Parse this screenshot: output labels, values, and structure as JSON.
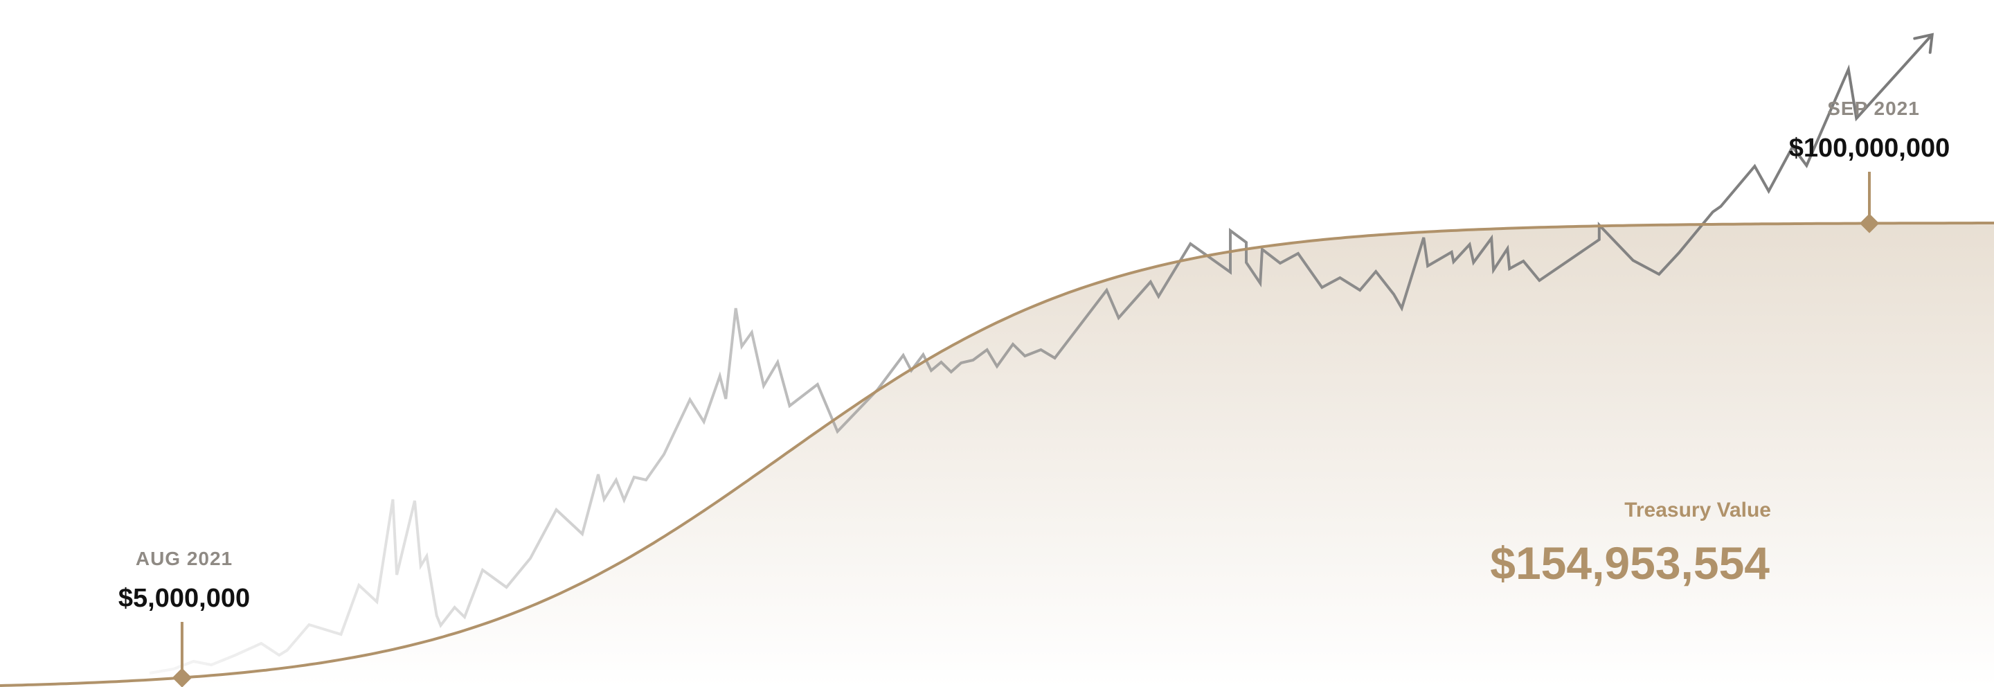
{
  "chart_data": {
    "type": "area",
    "title": "",
    "xlabel": "",
    "ylabel": "",
    "colors": {
      "curve": "#b0926a",
      "fill_top": "#e8dfd3",
      "fill_bottom": "#ffffff",
      "price_line": "#8a8a8a"
    },
    "annotations": [
      {
        "month": "AUG 2021",
        "amount": "$5,000,000",
        "x": 0.0913,
        "value": 5000000
      },
      {
        "month": "SEP 2021",
        "amount": "$100,000,000",
        "x": 0.9375,
        "value": 100000000
      }
    ],
    "treasury": {
      "label": "Treasury Value",
      "value": "$154,953,554"
    },
    "price_series": {
      "x": [
        0.075,
        0.087,
        0.097,
        0.106,
        0.118,
        0.131,
        0.14,
        0.144,
        0.155,
        0.171,
        0.18,
        0.189,
        0.197,
        0.199,
        0.208,
        0.211,
        0.214,
        0.219,
        0.221,
        0.228,
        0.233,
        0.242,
        0.254,
        0.266,
        0.279,
        0.292,
        0.3,
        0.303,
        0.309,
        0.313,
        0.318,
        0.324,
        0.333,
        0.346,
        0.353,
        0.361,
        0.364,
        0.369,
        0.372,
        0.377,
        0.383,
        0.39,
        0.396,
        0.41,
        0.42,
        0.44,
        0.453,
        0.457,
        0.463,
        0.467,
        0.472,
        0.477,
        0.482,
        0.488,
        0.495,
        0.5,
        0.508,
        0.514,
        0.522,
        0.529,
        0.555,
        0.561,
        0.577,
        0.581,
        0.597,
        0.617,
        0.617,
        0.625,
        0.625,
        0.632,
        0.633,
        0.642,
        0.651,
        0.663,
        0.672,
        0.682,
        0.69,
        0.699,
        0.703,
        0.714,
        0.716,
        0.728,
        0.729,
        0.737,
        0.739,
        0.748,
        0.749,
        0.756,
        0.757,
        0.764,
        0.772,
        0.802,
        0.802,
        0.819,
        0.832,
        0.842,
        0.859,
        0.863,
        0.88,
        0.887,
        0.899,
        0.906,
        0.927,
        0.931,
        0.969
      ],
      "y": [
        0.028,
        0.034,
        0.045,
        0.04,
        0.054,
        0.071,
        0.054,
        0.061,
        0.098,
        0.084,
        0.155,
        0.131,
        0.279,
        0.17,
        0.277,
        0.183,
        0.197,
        0.111,
        0.097,
        0.123,
        0.109,
        0.177,
        0.152,
        0.194,
        0.264,
        0.229,
        0.315,
        0.279,
        0.307,
        0.278,
        0.311,
        0.307,
        0.344,
        0.423,
        0.391,
        0.457,
        0.424,
        0.555,
        0.5,
        0.52,
        0.443,
        0.477,
        0.414,
        0.445,
        0.377,
        0.437,
        0.487,
        0.465,
        0.488,
        0.465,
        0.477,
        0.463,
        0.476,
        0.48,
        0.495,
        0.471,
        0.503,
        0.486,
        0.495,
        0.483,
        0.581,
        0.541,
        0.593,
        0.572,
        0.648,
        0.607,
        0.667,
        0.65,
        0.621,
        0.591,
        0.64,
        0.62,
        0.634,
        0.585,
        0.599,
        0.581,
        0.608,
        0.575,
        0.555,
        0.657,
        0.616,
        0.636,
        0.622,
        0.647,
        0.621,
        0.656,
        0.61,
        0.641,
        0.612,
        0.623,
        0.595,
        0.654,
        0.675,
        0.624,
        0.604,
        0.635,
        0.694,
        0.702,
        0.76,
        0.724,
        0.788,
        0.761,
        0.9,
        0.829,
        0.95
      ]
    }
  }
}
